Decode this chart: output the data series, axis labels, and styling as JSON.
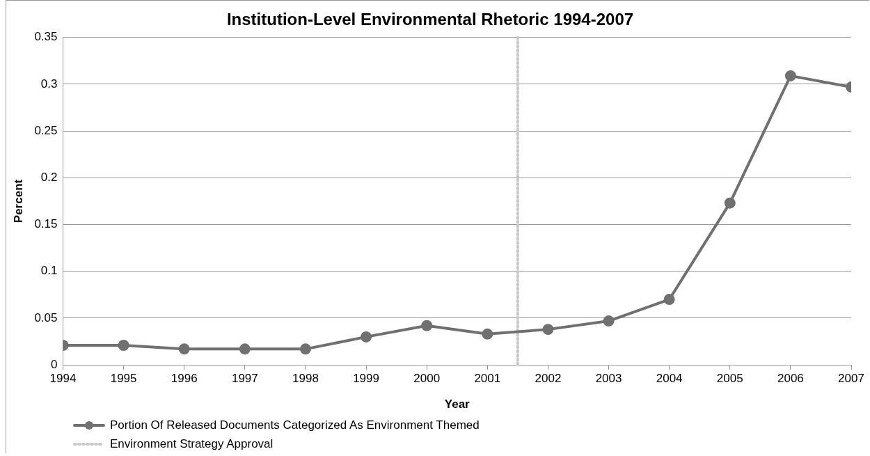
{
  "chart_data": {
    "type": "line",
    "title": "Institution-Level Environmental Rhetoric 1994-2007",
    "xlabel": "Year",
    "ylabel": "Percent",
    "x": [
      1994,
      1995,
      1996,
      1997,
      1998,
      1999,
      2000,
      2001,
      2002,
      2003,
      2004,
      2005,
      2006,
      2007
    ],
    "series": [
      {
        "name": "Portion Of Released Documents Categorized As Environment Themed",
        "color": "#707070",
        "values": [
          0.021,
          0.021,
          0.017,
          0.017,
          0.017,
          0.03,
          0.042,
          0.033,
          0.038,
          0.047,
          0.07,
          0.173,
          0.309,
          0.297
        ]
      }
    ],
    "xlim": [
      1994,
      2007
    ],
    "xticks": [
      1994,
      1995,
      1996,
      1997,
      1998,
      1999,
      2000,
      2001,
      2002,
      2003,
      2004,
      2005,
      2006,
      2007
    ],
    "ylim": [
      0,
      0.35
    ],
    "yticks": [
      0,
      0.05,
      0.1,
      0.15,
      0.2,
      0.25,
      0.3,
      0.35
    ],
    "ref_lines": [
      {
        "axis": "x",
        "value": 2001.5,
        "label": "Environment Strategy Approval",
        "color": "#c8c8c8",
        "line_style": "dotted"
      }
    ],
    "grid": "y",
    "legend": "bottom left",
    "marker": "circle",
    "line_style": "solid"
  }
}
